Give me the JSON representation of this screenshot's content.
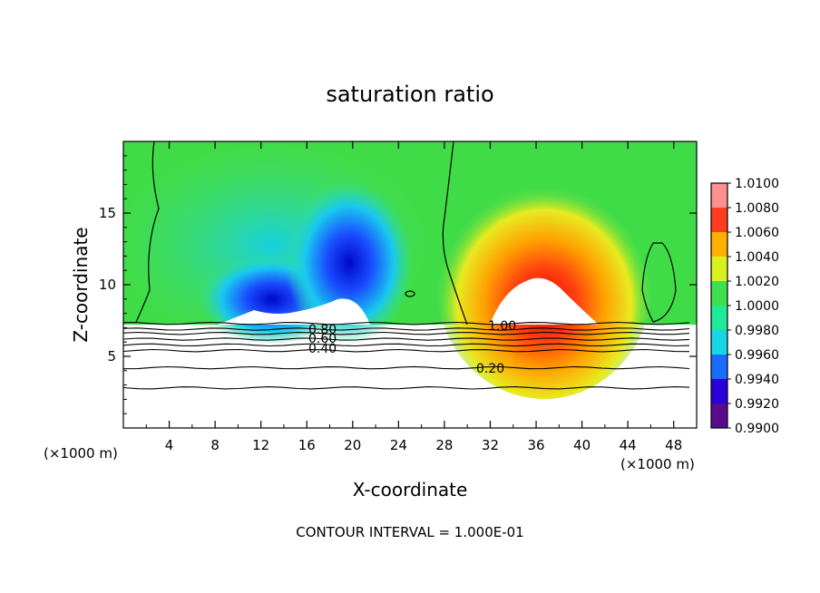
{
  "chart_data": {
    "type": "heatmap",
    "title": "saturation ratio",
    "xlabel": "X-coordinate",
    "ylabel": "Z-coordinate",
    "x_unit_label_left": "(×1000 m)",
    "x_unit_label_right": "(×1000 m)",
    "footer": "CONTOUR INTERVAL = 1.000E-01",
    "xlim": [
      0,
      50
    ],
    "ylim": [
      0,
      20
    ],
    "x_ticks": [
      "4",
      "8",
      "12",
      "16",
      "20",
      "24",
      "28",
      "32",
      "36",
      "40",
      "44",
      "48"
    ],
    "y_ticks": [
      "5",
      "10",
      "15"
    ],
    "colorbar": {
      "ticks": [
        "0.9900",
        "0.9920",
        "0.9940",
        "0.9960",
        "0.9980",
        "1.0000",
        "1.0020",
        "1.0040",
        "1.0060",
        "1.0080",
        "1.0100"
      ],
      "range": [
        0.99,
        1.01
      ],
      "colors": [
        "#5a0a8c",
        "#2a00d8",
        "#1a6cff",
        "#19d6e6",
        "#1ee89a",
        "#3ee050",
        "#d8f020",
        "#ffb000",
        "#ff3c1c",
        "#ff9090"
      ]
    },
    "contour_labels": [
      "0.80",
      "0.60",
      "0.40",
      "0.20",
      "1.00"
    ],
    "contour_levels": [
      0.2,
      0.4,
      0.6,
      0.8,
      1.0
    ]
  }
}
